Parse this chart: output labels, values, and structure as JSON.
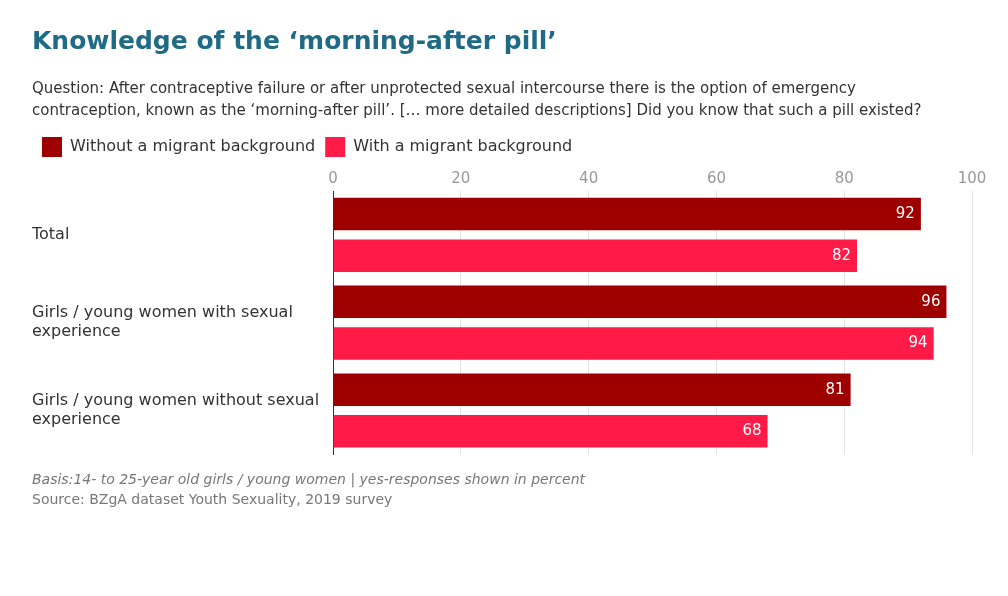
{
  "chart_data": {
    "type": "bar",
    "orientation": "horizontal",
    "title": "Knowledge of the ‘morning-after pill’",
    "subtitle": "Question: After contraceptive failure or after unprotected sexual intercourse there is the option of emergency contraception, known as the ‘morning-after pill’. [… more detailed descriptions] Did you know that such a pill existed?",
    "categories": [
      "Total",
      "Girls / young women with sexual experience",
      "Girls / young women without sexual experience"
    ],
    "series": [
      {
        "name": "Without a migrant background",
        "color": "#9e0000",
        "values": [
          92,
          96,
          81
        ]
      },
      {
        "name": "With a migrant background",
        "color": "#ff1a47",
        "values": [
          82,
          94,
          68
        ]
      }
    ],
    "xlim": [
      0,
      100
    ],
    "xticks": [
      0,
      20,
      40,
      60,
      80,
      100
    ],
    "grid": "x",
    "legend": "top left",
    "data_labels": true,
    "annotations": [
      "Basis:14- to 25-year old girls / young  women | yes-responses shown in percent",
      "Source: BZgA dataset Youth Sexuality, 2019 survey"
    ]
  }
}
